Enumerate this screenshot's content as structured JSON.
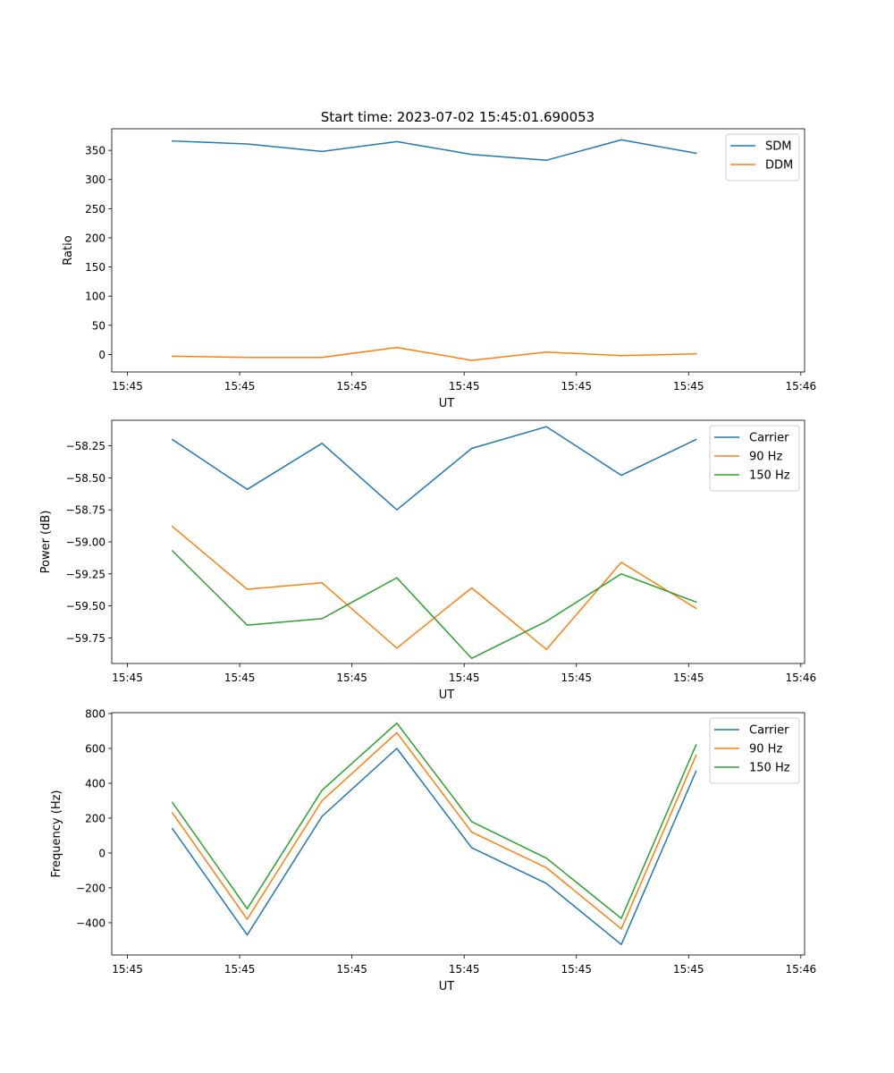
{
  "figure": {
    "title": "Start time: 2023-07-02 15:45:01.690053"
  },
  "chart_data": [
    {
      "type": "line",
      "xlabel": "UT",
      "ylabel": "Ratio",
      "x": [
        1,
        2,
        3,
        4,
        5,
        6,
        7,
        8
      ],
      "xlim": [
        0.19,
        9.45
      ],
      "xticks": [
        0.4,
        1.9,
        3.4,
        4.9,
        6.4,
        7.9,
        9.4
      ],
      "xtick_labels": [
        "15:45",
        "15:45",
        "15:45",
        "15:45",
        "15:45",
        "15:45",
        "15:46"
      ],
      "ylim": [
        -30,
        387
      ],
      "yticks": [
        0,
        50,
        100,
        150,
        200,
        250,
        300,
        350
      ],
      "ytick_labels": [
        "0",
        "50",
        "100",
        "150",
        "200",
        "250",
        "300",
        "350"
      ],
      "legend": "top-right",
      "series": [
        {
          "name": "SDM",
          "color": "#1f77b4",
          "values": [
            366,
            361,
            348,
            365,
            343,
            333,
            368,
            345
          ]
        },
        {
          "name": "DDM",
          "color": "#ff7f0e",
          "values": [
            -3,
            -5,
            -5,
            12,
            -10,
            4,
            -2,
            1
          ]
        }
      ]
    },
    {
      "type": "line",
      "xlabel": "UT",
      "ylabel": "Power (dB)",
      "x": [
        1,
        2,
        3,
        4,
        5,
        6,
        7,
        8
      ],
      "xlim": [
        0.19,
        9.45
      ],
      "xticks": [
        0.4,
        1.9,
        3.4,
        4.9,
        6.4,
        7.9,
        9.4
      ],
      "xtick_labels": [
        "15:45",
        "15:45",
        "15:45",
        "15:45",
        "15:45",
        "15:45",
        "15:46"
      ],
      "ylim": [
        -59.95,
        -58.05
      ],
      "yticks": [
        -59.75,
        -59.5,
        -59.25,
        -59.0,
        -58.75,
        -58.5,
        -58.25
      ],
      "ytick_labels": [
        "−59.75",
        "−59.50",
        "−59.25",
        "−59.00",
        "−58.75",
        "−58.50",
        "−58.25"
      ],
      "legend": "top-right",
      "series": [
        {
          "name": "Carrier",
          "color": "#1f77b4",
          "values": [
            -58.2,
            -58.59,
            -58.23,
            -58.75,
            -58.27,
            -58.1,
            -58.48,
            -58.2
          ]
        },
        {
          "name": "90 Hz",
          "color": "#ff7f0e",
          "values": [
            -58.88,
            -59.37,
            -59.32,
            -59.83,
            -59.36,
            -59.84,
            -59.16,
            -59.52
          ]
        },
        {
          "name": "150 Hz",
          "color": "#2ca02c",
          "values": [
            -59.07,
            -59.65,
            -59.6,
            -59.28,
            -59.91,
            -59.62,
            -59.25,
            -59.47
          ]
        }
      ]
    },
    {
      "type": "line",
      "xlabel": "UT",
      "ylabel": "Frequency (Hz)",
      "x": [
        1,
        2,
        3,
        4,
        5,
        6,
        7,
        8
      ],
      "xlim": [
        0.19,
        9.45
      ],
      "xticks": [
        0.4,
        1.9,
        3.4,
        4.9,
        6.4,
        7.9,
        9.4
      ],
      "xtick_labels": [
        "15:45",
        "15:45",
        "15:45",
        "15:45",
        "15:45",
        "15:45",
        "15:46"
      ],
      "ylim": [
        -585,
        805
      ],
      "yticks": [
        -400,
        -200,
        0,
        200,
        400,
        600,
        800
      ],
      "ytick_labels": [
        "−400",
        "−200",
        "0",
        "200",
        "400",
        "600",
        "800"
      ],
      "legend": "top-right",
      "series": [
        {
          "name": "Carrier",
          "color": "#1f77b4",
          "values": [
            140,
            -470,
            210,
            600,
            30,
            -175,
            -525,
            470
          ]
        },
        {
          "name": "90 Hz",
          "color": "#ff7f0e",
          "values": [
            230,
            -380,
            300,
            690,
            120,
            -85,
            -435,
            560
          ]
        },
        {
          "name": "150 Hz",
          "color": "#2ca02c",
          "values": [
            290,
            -320,
            360,
            745,
            180,
            -30,
            -375,
            620
          ]
        }
      ]
    }
  ]
}
